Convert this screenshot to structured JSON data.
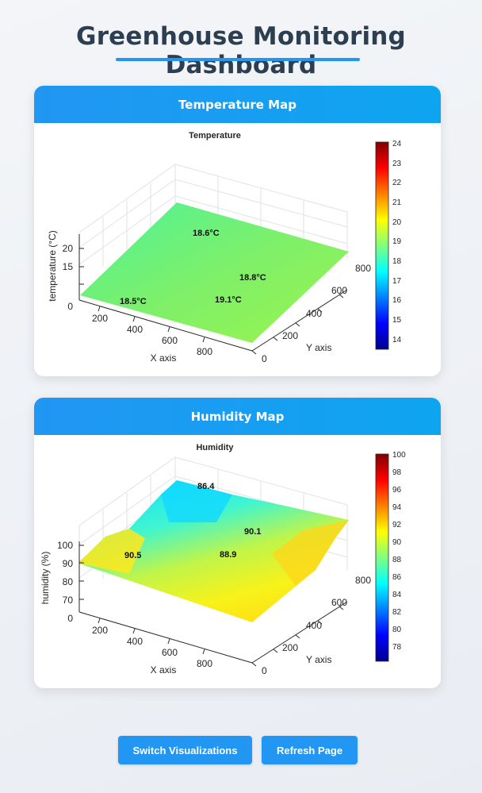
{
  "page": {
    "title": "Greenhouse Monitoring Dashboard"
  },
  "temperature_card": {
    "header": "Temperature Map",
    "plot_title": "Temperature",
    "zlabel": "temperature (°C)",
    "xlabel": "X axis",
    "ylabel": "Y axis",
    "x_ticks": [
      "200",
      "400",
      "600",
      "800"
    ],
    "y_ticks": [
      "0",
      "200",
      "400",
      "600",
      "800"
    ],
    "z_ticks": [
      "0",
      "15",
      "20"
    ],
    "colorbar_ticks": [
      "24",
      "23",
      "22",
      "21",
      "20",
      "19",
      "18",
      "17",
      "16",
      "15",
      "14"
    ],
    "annotations": [
      "18.6°C",
      "18.8°C",
      "18.5°C",
      "19.1°C"
    ]
  },
  "humidity_card": {
    "header": "Humidity Map",
    "plot_title": "Humidity",
    "zlabel": "humidity (%)",
    "xlabel": "X axis",
    "ylabel": "Y axis",
    "x_ticks": [
      "200",
      "400",
      "600",
      "800"
    ],
    "y_ticks": [
      "0",
      "200",
      "400",
      "600",
      "800"
    ],
    "z_ticks": [
      "0",
      "70",
      "80",
      "90",
      "100"
    ],
    "colorbar_ticks": [
      "100",
      "98",
      "96",
      "94",
      "92",
      "90",
      "88",
      "86",
      "84",
      "82",
      "80",
      "78"
    ],
    "annotations": [
      "86.4",
      "90.1",
      "90.5",
      "88.9"
    ]
  },
  "buttons": {
    "switch": "Switch Visualizations",
    "refresh": "Refresh Page"
  },
  "colors": {
    "accent": "#2196f3",
    "title_text": "#2c3e50"
  }
}
